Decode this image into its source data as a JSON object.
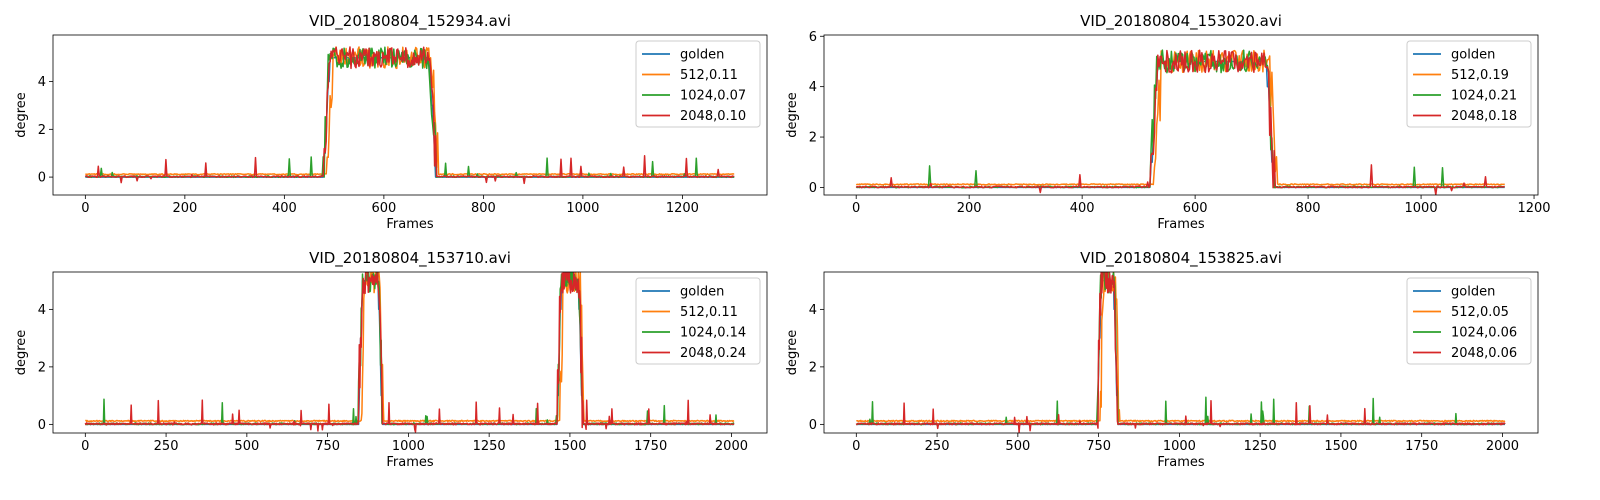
{
  "colors": {
    "golden": "#1f77b4",
    "c512": "#ff7f0e",
    "c1024": "#2ca02c",
    "c2048": "#d62728"
  },
  "chart_data": [
    {
      "type": "line",
      "title": "VID_20180804_152934.avi",
      "xlabel": "Frames",
      "ylabel": "degree",
      "xlim": [
        -65,
        1370
      ],
      "ylim": [
        -0.75,
        5.95
      ],
      "xticks": [
        0,
        200,
        400,
        600,
        800,
        1000,
        1200
      ],
      "yticks": [
        0,
        2,
        4
      ],
      "n_frames": 1305,
      "legend": "top-right",
      "series": [
        {
          "name": "golden",
          "color": "#1f77b4"
        },
        {
          "name": "512,0.11",
          "color": "#ff7f0e"
        },
        {
          "name": "1024,0.07",
          "color": "#2ca02c"
        },
        {
          "name": "2048,0.10",
          "color": "#d62728"
        }
      ],
      "plateaus": [
        {
          "rise": 478,
          "fall": 705,
          "level": 5.0
        }
      ],
      "noise_level": 0.3
    },
    {
      "type": "line",
      "title": "VID_20180804_153020.avi",
      "xlabel": "Frames",
      "ylabel": "degree",
      "xlim": [
        -57,
        1207
      ],
      "ylim": [
        -0.3,
        6.05
      ],
      "xticks": [
        0,
        200,
        400,
        600,
        800,
        1000,
        1200
      ],
      "yticks": [
        0,
        2,
        4,
        6
      ],
      "n_frames": 1150,
      "legend": "top-right",
      "series": [
        {
          "name": "golden",
          "color": "#1f77b4"
        },
        {
          "name": "512,0.19",
          "color": "#ff7f0e"
        },
        {
          "name": "1024,0.21",
          "color": "#2ca02c"
        },
        {
          "name": "2048,0.18",
          "color": "#d62728"
        }
      ],
      "plateaus": [
        {
          "rise": 520,
          "fall": 740,
          "level": 5.0
        }
      ],
      "noise_level": 0.15
    },
    {
      "type": "line",
      "title": "VID_20180804_153710.avi",
      "xlabel": "Frames",
      "ylabel": "degree",
      "xlim": [
        -100,
        2110
      ],
      "ylim": [
        -0.3,
        5.3
      ],
      "xticks": [
        0,
        250,
        500,
        750,
        1000,
        1250,
        1500,
        1750,
        2000
      ],
      "yticks": [
        0,
        2,
        4
      ],
      "n_frames": 2010,
      "legend": "top-right",
      "series": [
        {
          "name": "golden",
          "color": "#1f77b4"
        },
        {
          "name": "512,0.11",
          "color": "#ff7f0e"
        },
        {
          "name": "1024,0.14",
          "color": "#2ca02c"
        },
        {
          "name": "2048,0.24",
          "color": "#d62728"
        }
      ],
      "plateaus": [
        {
          "rise": 845,
          "fall": 920,
          "level": 5.0
        },
        {
          "rise": 1460,
          "fall": 1540,
          "level": 5.0
        }
      ],
      "noise_level": 0.3
    },
    {
      "type": "line",
      "title": "VID_20180804_153825.avi",
      "xlabel": "Frames",
      "ylabel": "degree",
      "xlim": [
        -100,
        2110
      ],
      "ylim": [
        -0.3,
        5.3
      ],
      "xticks": [
        0,
        250,
        500,
        750,
        1000,
        1250,
        1500,
        1750,
        2000
      ],
      "yticks": [
        0,
        2,
        4
      ],
      "n_frames": 2010,
      "legend": "top-right",
      "series": [
        {
          "name": "golden",
          "color": "#1f77b4"
        },
        {
          "name": "512,0.05",
          "color": "#ff7f0e"
        },
        {
          "name": "1024,0.06",
          "color": "#2ca02c"
        },
        {
          "name": "2048,0.06",
          "color": "#d62728"
        }
      ],
      "plateaus": [
        {
          "rise": 745,
          "fall": 810,
          "level": 5.0
        }
      ],
      "noise_level": 0.2
    }
  ]
}
